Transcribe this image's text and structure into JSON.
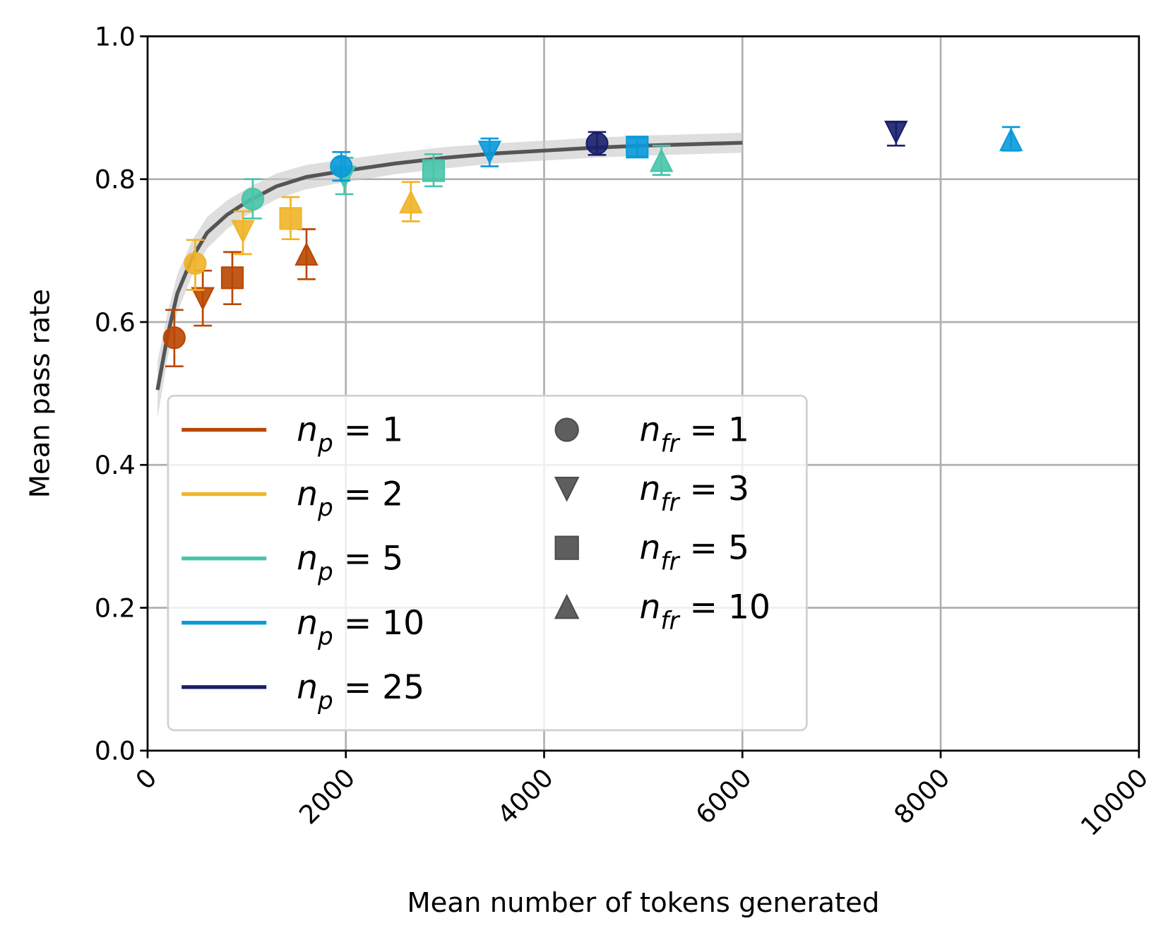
{
  "chart_data": {
    "type": "scatter",
    "title": "",
    "xlabel": "Mean number of tokens generated",
    "ylabel": "Mean pass rate",
    "xlim": [
      0,
      10000
    ],
    "ylim": [
      0.0,
      1.0
    ],
    "grid": true,
    "xticks": [
      "0",
      "2000",
      "4000",
      "6000",
      "8000",
      "10000"
    ],
    "xtick_values": [
      0,
      2000,
      4000,
      6000,
      8000,
      10000
    ],
    "yticks": [
      "0.0",
      "0.2",
      "0.4",
      "0.6",
      "0.8",
      "1.0"
    ],
    "ytick_values": [
      0,
      0.2,
      0.4,
      0.6,
      0.8,
      1.0
    ],
    "legend_placement": "lower-left",
    "color_legend": [
      {
        "label": "n_p = 1",
        "sub": "p",
        "value": "1",
        "color": "#b94700"
      },
      {
        "label": "n_p = 2",
        "sub": "p",
        "value": "2",
        "color": "#f0b429"
      },
      {
        "label": "n_p = 5",
        "sub": "p",
        "value": "5",
        "color": "#48c4aa"
      },
      {
        "label": "n_p = 10",
        "sub": "p",
        "value": "10",
        "color": "#0a9ada"
      },
      {
        "label": "n_p = 25",
        "sub": "p",
        "value": "25",
        "color": "#1a1f6b"
      }
    ],
    "marker_legend": [
      {
        "label": "n_fr = 1",
        "sub": "fr",
        "value": "1",
        "marker": "circle"
      },
      {
        "label": "n_fr = 3",
        "sub": "fr",
        "value": "3",
        "marker": "triangle-down"
      },
      {
        "label": "n_fr = 5",
        "sub": "fr",
        "value": "5",
        "marker": "square"
      },
      {
        "label": "n_fr = 10",
        "sub": "fr",
        "value": "10",
        "marker": "triangle-up"
      }
    ],
    "points": [
      {
        "np": 1,
        "nfr": 1,
        "x": 270,
        "y": 0.578,
        "ylo": 0.538,
        "yhi": 0.617
      },
      {
        "np": 1,
        "nfr": 3,
        "x": 557,
        "y": 0.633,
        "ylo": 0.595,
        "yhi": 0.672
      },
      {
        "np": 1,
        "nfr": 5,
        "x": 855,
        "y": 0.662,
        "ylo": 0.625,
        "yhi": 0.698
      },
      {
        "np": 1,
        "nfr": 10,
        "x": 1603,
        "y": 0.695,
        "ylo": 0.66,
        "yhi": 0.73
      },
      {
        "np": 2,
        "nfr": 1,
        "x": 481,
        "y": 0.682,
        "ylo": 0.645,
        "yhi": 0.715
      },
      {
        "np": 2,
        "nfr": 3,
        "x": 962,
        "y": 0.727,
        "ylo": 0.695,
        "yhi": 0.755
      },
      {
        "np": 2,
        "nfr": 5,
        "x": 1443,
        "y": 0.745,
        "ylo": 0.716,
        "yhi": 0.775
      },
      {
        "np": 2,
        "nfr": 10,
        "x": 2656,
        "y": 0.768,
        "ylo": 0.741,
        "yhi": 0.796
      },
      {
        "np": 5,
        "nfr": 1,
        "x": 1061,
        "y": 0.772,
        "ylo": 0.745,
        "yhi": 0.8
      },
      {
        "np": 5,
        "nfr": 3,
        "x": 1985,
        "y": 0.803,
        "ylo": 0.779,
        "yhi": 0.83
      },
      {
        "np": 5,
        "nfr": 5,
        "x": 2885,
        "y": 0.812,
        "ylo": 0.79,
        "yhi": 0.835
      },
      {
        "np": 5,
        "nfr": 10,
        "x": 5183,
        "y": 0.826,
        "ylo": 0.806,
        "yhi": 0.847
      },
      {
        "np": 10,
        "nfr": 1,
        "x": 1954,
        "y": 0.818,
        "ylo": 0.798,
        "yhi": 0.838
      },
      {
        "np": 10,
        "nfr": 3,
        "x": 3450,
        "y": 0.838,
        "ylo": 0.818,
        "yhi": 0.857
      },
      {
        "np": 10,
        "nfr": 5,
        "x": 4939,
        "y": 0.845,
        "ylo": 0.832,
        "yhi": 0.858
      },
      {
        "np": 10,
        "nfr": 10,
        "x": 8710,
        "y": 0.855,
        "ylo": 0.84,
        "yhi": 0.873
      },
      {
        "np": 25,
        "nfr": 1,
        "x": 4534,
        "y": 0.85,
        "ylo": 0.834,
        "yhi": 0.866
      },
      {
        "np": 25,
        "nfr": 3,
        "x": 7550,
        "y": 0.866,
        "ylo": 0.847,
        "yhi": 0.88
      }
    ],
    "trend_line": {
      "color": "#555555",
      "x": [
        100,
        200,
        300,
        450,
        600,
        800,
        1000,
        1300,
        1600,
        2000,
        2500,
        3000,
        3500,
        4000,
        4500,
        5000,
        5500,
        6000
      ],
      "y": [
        0.505,
        0.58,
        0.64,
        0.69,
        0.725,
        0.75,
        0.768,
        0.79,
        0.803,
        0.812,
        0.822,
        0.83,
        0.836,
        0.84,
        0.844,
        0.847,
        0.849,
        0.851
      ],
      "band": [
        0.04,
        0.032,
        0.027,
        0.024,
        0.022,
        0.02,
        0.019,
        0.018,
        0.017,
        0.016,
        0.015,
        0.015,
        0.014,
        0.014,
        0.014,
        0.014,
        0.014,
        0.014
      ]
    }
  }
}
